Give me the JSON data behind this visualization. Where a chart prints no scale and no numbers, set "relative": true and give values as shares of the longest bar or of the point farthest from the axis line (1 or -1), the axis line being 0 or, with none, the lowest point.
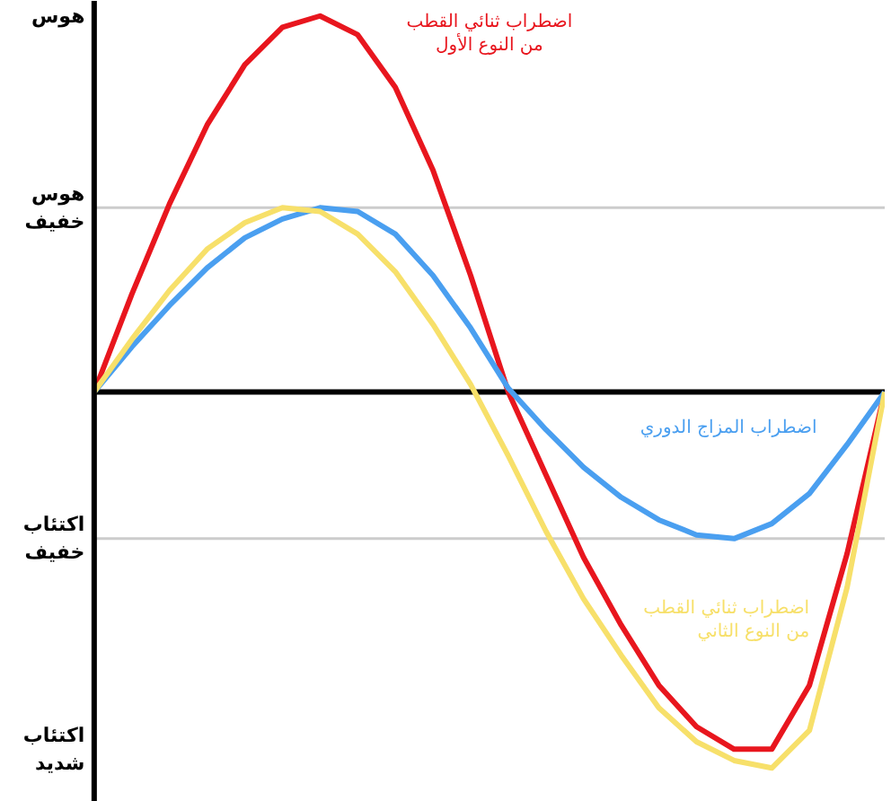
{
  "chart_data": {
    "type": "line",
    "categories": [
      null,
      null,
      null,
      null,
      null,
      null,
      null,
      null,
      null,
      null,
      null,
      null,
      null,
      null,
      null,
      null,
      null,
      null,
      null,
      null,
      null,
      null
    ],
    "relative": true,
    "tick_labels": false,
    "marker": "none",
    "line_style": "solid",
    "annotations": [
      "هوس",
      "اكتئاب\nشديد"
    ],
    "ref_lines": [
      {
        "axis": "y",
        "value": 0.49,
        "label": "هوس\nخفيف",
        "color": "#cccccc"
      },
      {
        "axis": "y",
        "value": -0.39,
        "label": "اكتئاب\nخفيف",
        "color": "#cccccc"
      },
      {
        "axis": "y",
        "value": 0,
        "color": "#000000"
      }
    ],
    "series": [
      {
        "name": "اضطراب ثنائي القطب\nمن النوع الأول",
        "color": "#e8161e",
        "values": [
          0,
          0.26,
          0.5,
          0.71,
          0.87,
          0.97,
          1,
          0.95,
          0.81,
          0.59,
          0.31,
          0,
          -0.22,
          -0.44,
          -0.62,
          -0.78,
          -0.89,
          -0.95,
          -0.95,
          -0.78,
          -0.43,
          0
        ]
      },
      {
        "name": "اضطراب المزاج الدوري",
        "color": "#4a9ff0",
        "values": [
          0,
          0.12,
          0.23,
          0.33,
          0.41,
          0.46,
          0.49,
          0.48,
          0.42,
          0.31,
          0.17,
          0.01,
          -0.1,
          -0.2,
          -0.28,
          -0.34,
          -0.38,
          -0.39,
          -0.35,
          -0.27,
          -0.14,
          0
        ]
      },
      {
        "name": "اضطراب ثنائي القطب\nمن النوع الثاني",
        "color": "#f7e06a",
        "values": [
          0,
          0.14,
          0.27,
          0.38,
          0.45,
          0.49,
          0.48,
          0.42,
          0.32,
          0.18,
          0.02,
          -0.17,
          -0.37,
          -0.55,
          -0.7,
          -0.84,
          -0.93,
          -0.98,
          -1.0,
          -0.9,
          -0.52,
          0
        ]
      }
    ]
  }
}
